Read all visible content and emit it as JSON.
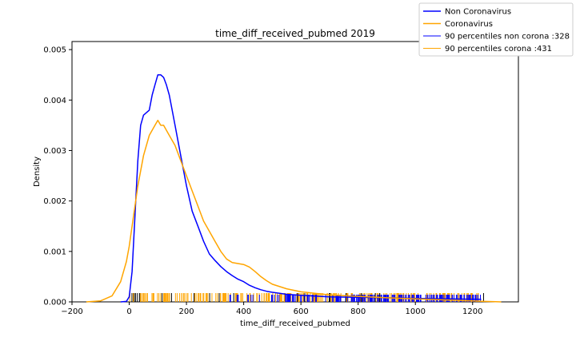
{
  "chart_data": {
    "type": "line",
    "title": "time_diff_received_pubmed 2019",
    "xlabel": "time_diff_received_pubmed",
    "ylabel": "Density",
    "xlim": [
      -200,
      1360
    ],
    "ylim": [
      0,
      0.00516
    ],
    "xticks": [
      "−200",
      "0",
      "200",
      "400",
      "600",
      "800",
      "1000",
      "1200"
    ],
    "xtick_values": [
      -200,
      0,
      200,
      400,
      600,
      800,
      1000,
      1200
    ],
    "yticks": [
      "0.000",
      "0.001",
      "0.002",
      "0.003",
      "0.004",
      "0.005"
    ],
    "ytick_values": [
      0,
      0.001,
      0.002,
      0.003,
      0.004,
      0.005
    ],
    "legend_position": "top-right",
    "legend": [
      "Non Coronavirus",
      "Coronavirus",
      "90 percentiles non corona :328",
      "90 percentiles corona :431"
    ],
    "series": [
      {
        "name": "Non Coronavirus",
        "color": "#0000ff",
        "x": [
          -30,
          -10,
          0,
          10,
          20,
          30,
          40,
          50,
          60,
          70,
          80,
          90,
          100,
          110,
          120,
          130,
          140,
          150,
          160,
          180,
          200,
          220,
          240,
          260,
          280,
          300,
          320,
          340,
          360,
          380,
          400,
          420,
          440,
          460,
          480,
          500,
          550,
          600,
          700,
          800,
          900,
          1000,
          1100,
          1230
        ],
        "y": [
          0,
          1e-05,
          0.0001,
          0.0006,
          0.0017,
          0.0028,
          0.0035,
          0.0037,
          0.00375,
          0.0038,
          0.0041,
          0.0043,
          0.0045,
          0.0045,
          0.00445,
          0.0043,
          0.0041,
          0.0038,
          0.0035,
          0.0029,
          0.0023,
          0.0018,
          0.0015,
          0.0012,
          0.00095,
          0.00082,
          0.0007,
          0.0006,
          0.00052,
          0.00045,
          0.0004,
          0.00033,
          0.00028,
          0.00024,
          0.00021,
          0.00019,
          0.00015,
          0.00013,
          0.0001,
          9e-05,
          8e-05,
          7e-05,
          6e-05,
          5e-05
        ]
      },
      {
        "name": "Coronavirus",
        "color": "#ffa500",
        "x": [
          -150,
          -100,
          -60,
          -30,
          -10,
          0,
          10,
          20,
          30,
          50,
          70,
          90,
          100,
          110,
          120,
          140,
          160,
          180,
          200,
          220,
          240,
          260,
          280,
          300,
          320,
          340,
          360,
          380,
          400,
          420,
          440,
          460,
          480,
          500,
          550,
          600,
          700,
          800,
          900,
          1000,
          1100,
          1200,
          1240,
          1280,
          1300
        ],
        "y": [
          0,
          2e-05,
          0.00012,
          0.0004,
          0.0008,
          0.0011,
          0.0015,
          0.0019,
          0.0023,
          0.0029,
          0.0033,
          0.0035,
          0.0036,
          0.0035,
          0.0035,
          0.0033,
          0.0031,
          0.0028,
          0.0025,
          0.0022,
          0.0019,
          0.0016,
          0.0014,
          0.0012,
          0.001,
          0.00085,
          0.00078,
          0.00076,
          0.00074,
          0.00069,
          0.0006,
          0.0005,
          0.00042,
          0.00035,
          0.00026,
          0.0002,
          0.00014,
          0.00011,
          8e-05,
          6e-05,
          4e-05,
          2e-05,
          1e-05,
          3e-06,
          0
        ]
      }
    ],
    "percentile_lines": [
      {
        "label": "90 percentiles non corona :328",
        "color": "#0000ff",
        "value": 328
      },
      {
        "label": "90 percentiles corona :431",
        "color": "#ffa500",
        "value": 431
      }
    ],
    "rug": {
      "orange_range": [
        0,
        1230
      ],
      "blue_range": [
        350,
        1230
      ]
    }
  }
}
